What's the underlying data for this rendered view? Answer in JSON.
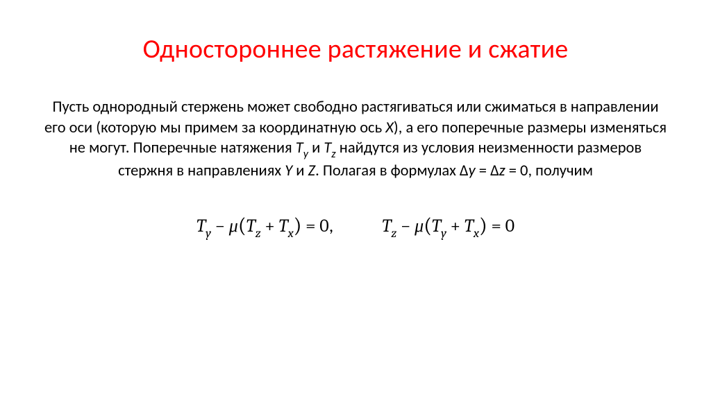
{
  "title": "Одностороннее растяжение и сжатие",
  "title_color": "#ff0000",
  "title_fontsize": 38,
  "body_color": "#000000",
  "body_fontsize": 22.5,
  "background_color": "#ffffff",
  "body": {
    "t1": "Пусть однородный стержень может свободно растягиваться или сжиматься в направлении его оси (которую мы примем за координатную ось ",
    "axis_x": "X",
    "t2": "), а его поперечные размеры изменяться не могут. Поперечные натяжения ",
    "Ty_T": "T",
    "Ty_sub": "y",
    "and": " и ",
    "Tz_T": "T",
    "Tz_sub": "z",
    "t3": " найдутся из условия неизменности размеров стержня в направлениях ",
    "axis_y": "Y",
    "and2": " и ",
    "axis_z": "Z",
    "t4": ". Полагая в формулах ",
    "delta": "Δ",
    "dy": "y",
    "eq": " = ",
    "dz": "z",
    "zerocond": " = 0",
    "t5": ", получим"
  },
  "eq_fontsize": 26,
  "eq1": {
    "T1": "T",
    "s1": "y",
    "minus": " − ",
    "mu": "μ",
    "lp": "(",
    "T2": "T",
    "s2": "z",
    "plus": " + ",
    "T3": "T",
    "s3": "x",
    "rp": ")",
    "eqz": " = 0",
    "comma": ","
  },
  "eq2": {
    "T1": "T",
    "s1": "z",
    "minus": " − ",
    "mu": "μ",
    "lp": "(",
    "T2": "T",
    "s2": "y",
    "plus": " + ",
    "T3": "T",
    "s3": "x",
    "rp": ")",
    "eqz": " = 0"
  }
}
